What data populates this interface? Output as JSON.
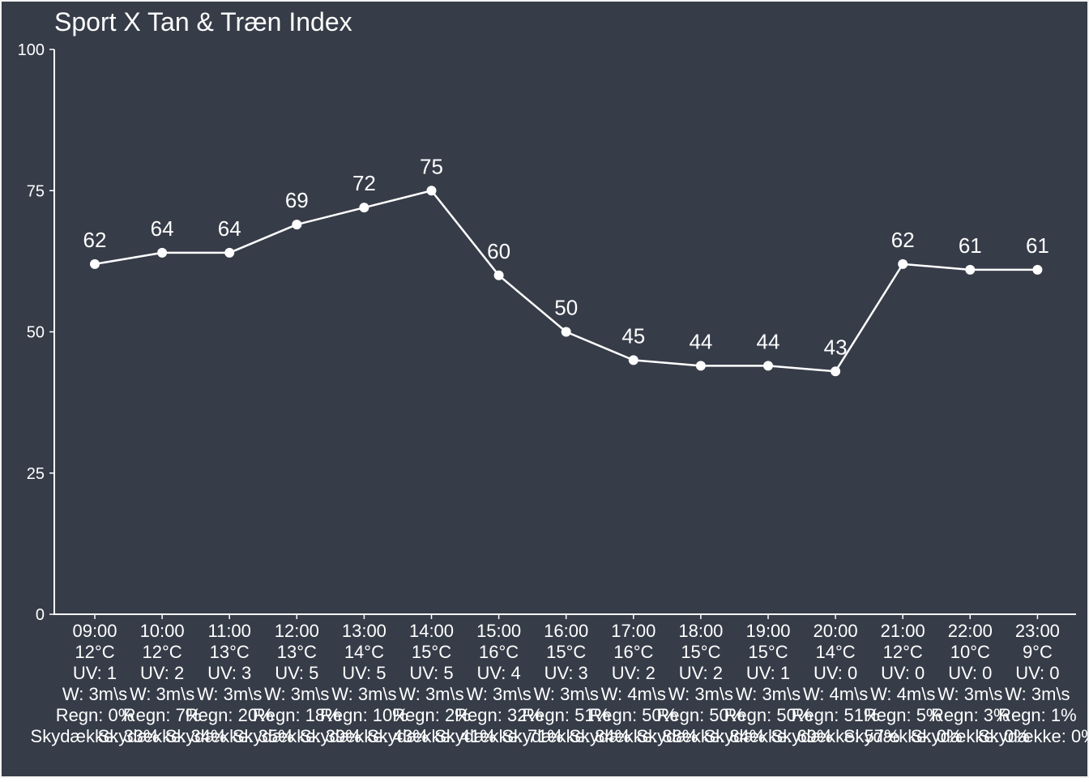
{
  "colors": {
    "background": "#363c48",
    "border": "#f2f2f2",
    "foreground": "#ffffff"
  },
  "chart_data": {
    "type": "line",
    "title": "Sport X Tan & Træn Index",
    "xlabel": "",
    "ylabel": "",
    "ylim": [
      0,
      100
    ],
    "yticks": [
      0,
      25,
      50,
      75,
      100
    ],
    "grid": false,
    "legend": "none",
    "categories": [
      "09:00",
      "10:00",
      "11:00",
      "12:00",
      "13:00",
      "14:00",
      "15:00",
      "16:00",
      "17:00",
      "18:00",
      "19:00",
      "20:00",
      "21:00",
      "22:00",
      "23:00"
    ],
    "category_details": [
      [
        "09:00",
        "12°C",
        "UV: 1",
        "W: 3m\\s",
        "Regn: 0%",
        "Skydække: 33%"
      ],
      [
        "10:00",
        "12°C",
        "UV: 2",
        "W: 3m\\s",
        "Regn: 7%",
        "Skydække: 34%"
      ],
      [
        "11:00",
        "13°C",
        "UV: 3",
        "W: 3m\\s",
        "Regn: 20%",
        "Skydække: 35%"
      ],
      [
        "12:00",
        "13°C",
        "UV: 5",
        "W: 3m\\s",
        "Regn: 18%",
        "Skydække: 39%"
      ],
      [
        "13:00",
        "14°C",
        "UV: 5",
        "W: 3m\\s",
        "Regn: 10%",
        "Skydække: 43%"
      ],
      [
        "14:00",
        "15°C",
        "UV: 5",
        "W: 3m\\s",
        "Regn: 2%",
        "Skydække: 41%"
      ],
      [
        "15:00",
        "16°C",
        "UV: 4",
        "W: 3m\\s",
        "Regn: 32%",
        "Skydække: 71%"
      ],
      [
        "16:00",
        "15°C",
        "UV: 3",
        "W: 3m\\s",
        "Regn: 51%",
        "Skydække: 84%"
      ],
      [
        "17:00",
        "16°C",
        "UV: 2",
        "W: 4m\\s",
        "Regn: 50%",
        "Skydække: 88%"
      ],
      [
        "18:00",
        "15°C",
        "UV: 2",
        "W: 3m\\s",
        "Regn: 50%",
        "Skydække: 84%"
      ],
      [
        "19:00",
        "15°C",
        "UV: 1",
        "W: 3m\\s",
        "Regn: 50%",
        "Skydække: 69%"
      ],
      [
        "20:00",
        "14°C",
        "UV: 0",
        "W: 4m\\s",
        "Regn: 51%",
        "Skydække: 57%"
      ],
      [
        "21:00",
        "12°C",
        "UV: 0",
        "W: 4m\\s",
        "Regn: 5%",
        "Skydække: 0%"
      ],
      [
        "22:00",
        "10°C",
        "UV: 0",
        "W: 3m\\s",
        "Regn: 3%",
        "Skydække: 0%"
      ],
      [
        "23:00",
        "9°C",
        "UV: 0",
        "W: 3m\\s",
        "Regn: 1%",
        "Skydække: 0%"
      ]
    ],
    "series": [
      {
        "values": [
          62,
          64,
          64,
          69,
          72,
          75,
          60,
          50,
          45,
          44,
          44,
          43,
          62,
          61,
          61
        ]
      }
    ]
  }
}
